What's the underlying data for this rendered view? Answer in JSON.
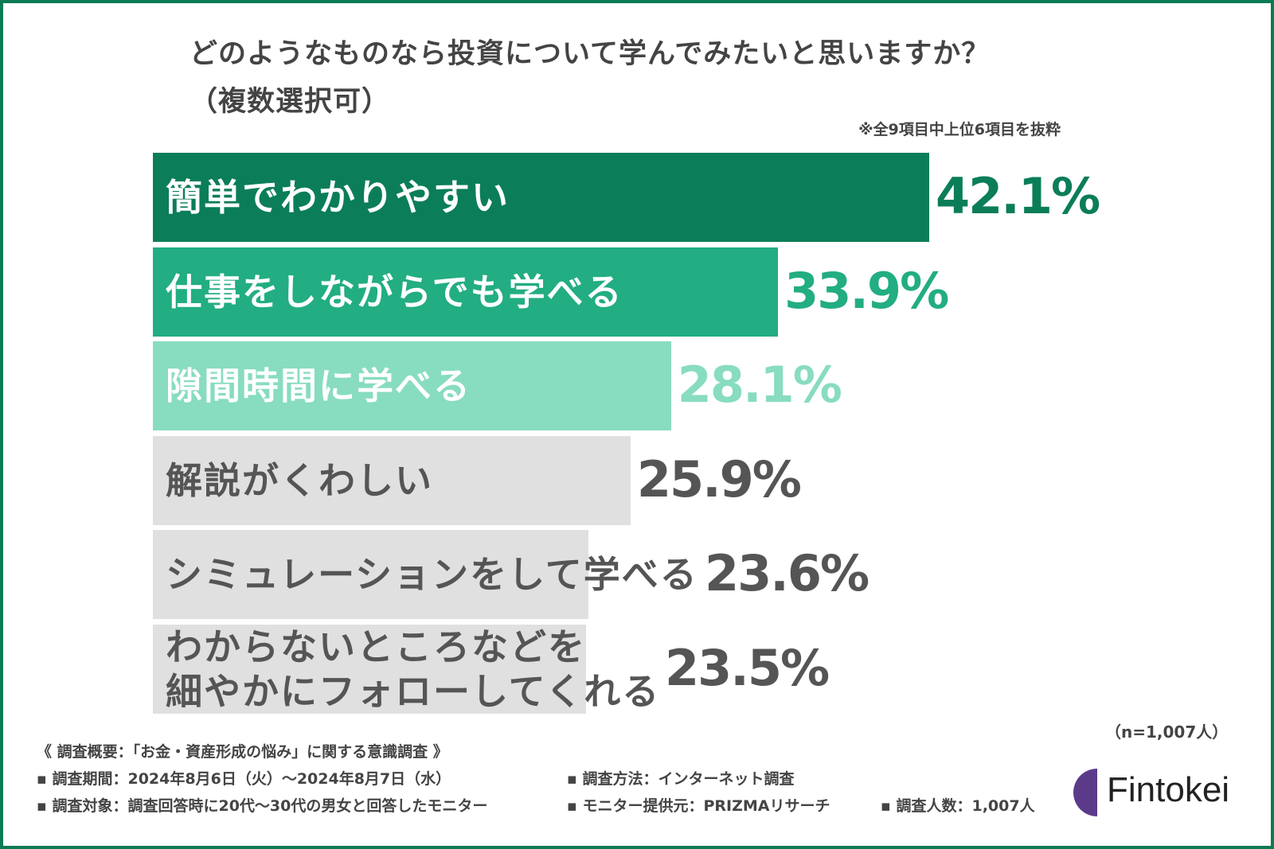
{
  "title_line1": "どのようなものなら投資について学んでみたいと思いますか？",
  "title_line2": "（複数選択可）",
  "note": "※全9項目中上位6項目を抜粋",
  "sample_size": "（n=1,007人）",
  "footer": {
    "overview": "《 調査概要：「お金・資産形成の悩み」に関する意識調査 》",
    "period": "▪ 調査期間：2024年8月6日（火）～2024年8月7日（水）",
    "method": "▪ 調査方法：インターネット調査",
    "target": "▪ 調査対象：調査回答時に20代～30代の男女と回答したモニター",
    "provider": "▪ モニター提供元：PRIZMAリサーチ",
    "count": "▪ 調査人数：1,007人"
  },
  "logo": {
    "text": "Fintokei",
    "color": "#5c3a8a"
  },
  "chart_data": {
    "type": "bar",
    "orientation": "horizontal",
    "title": "どのようなものなら投資について学んでみたいと思いますか？（複数選択可）",
    "categories": [
      "簡単でわかりやすい",
      "仕事をしながらでも学べる",
      "隙間時間に学べる",
      "解説がくわしい",
      "シミュレーションをして学べる",
      "わからないところなどを\n細やかにフォローしてくれる"
    ],
    "values": [
      42.1,
      33.9,
      28.1,
      25.9,
      23.6,
      23.5
    ],
    "value_labels": [
      "42.1%",
      "33.9%",
      "28.1%",
      "25.9%",
      "23.6%",
      "23.5%"
    ],
    "unit": "%",
    "bar_colors": [
      "#0b7d59",
      "#22ad82",
      "#88dcc0",
      "#e0e0e0",
      "#e0e0e0",
      "#e0e0e0"
    ],
    "label_colors": [
      "#ffffff",
      "#ffffff",
      "#ffffff",
      "#555555",
      "#555555",
      "#555555"
    ],
    "value_colors": [
      "#0b7d59",
      "#22ad82",
      "#88dcc0",
      "#555555",
      "#555555",
      "#555555"
    ],
    "grid": false,
    "legend": "none"
  }
}
